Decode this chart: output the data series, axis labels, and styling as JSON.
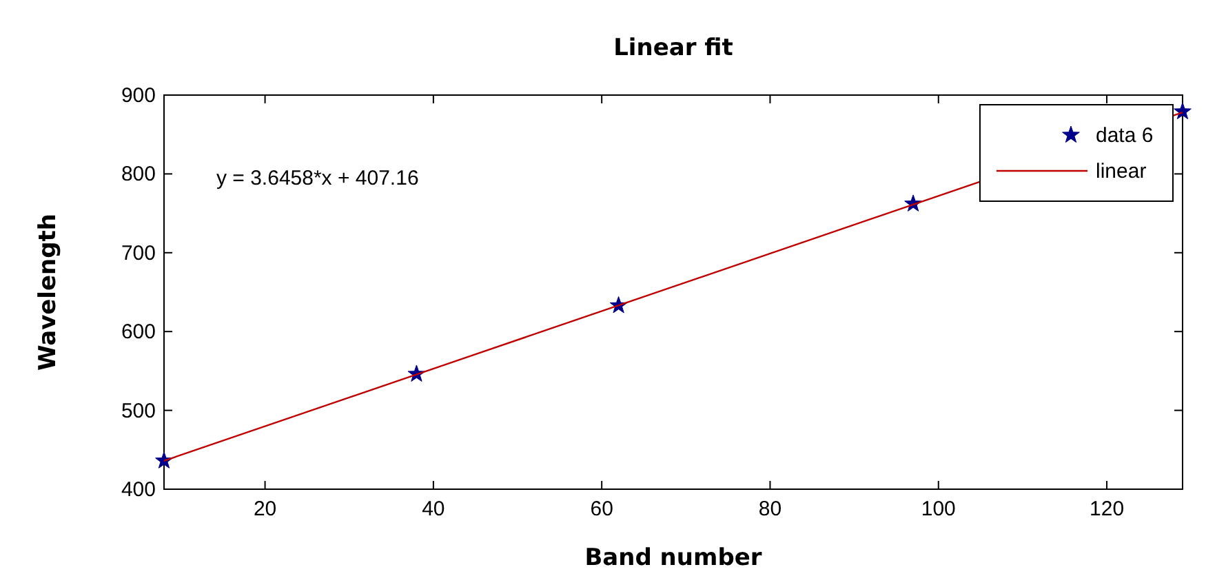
{
  "chart_data": {
    "type": "scatter",
    "title": "Linear fit",
    "xlabel": "Band number",
    "ylabel": "Wavelength",
    "annotations": [
      "y = 3.6458*x + 407.16"
    ],
    "xlim": [
      8,
      129
    ],
    "xticks": [
      20,
      40,
      60,
      80,
      100,
      120
    ],
    "ylim": [
      400,
      900
    ],
    "yticks": [
      400,
      500,
      600,
      700,
      800,
      900
    ],
    "grid": false,
    "legend": "top right",
    "series": [
      {
        "name": "data 6",
        "marker": "star",
        "color": "#00008b",
        "x": [
          8,
          38,
          62,
          97,
          129
        ],
        "values": [
          436,
          546,
          633,
          762,
          879
        ]
      },
      {
        "name": "linear",
        "type": "line",
        "marker": "none",
        "line_style": "solid",
        "color": "#c00000",
        "x": [
          8,
          129
        ],
        "values": [
          436,
          878
        ]
      }
    ]
  }
}
